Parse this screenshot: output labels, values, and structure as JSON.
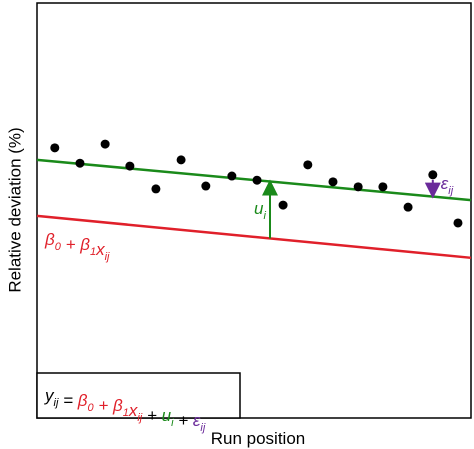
{
  "chart_data": {
    "type": "scatter",
    "x_label": "Run position",
    "y_label": "Relative deviation (%)",
    "xlim": [
      0,
      100
    ],
    "ylim": [
      0,
      100
    ],
    "x": [
      4.1,
      9.9,
      15.7,
      21.4,
      27.4,
      33.2,
      38.9,
      44.9,
      50.7,
      56.7,
      62.4,
      68.2,
      74.0,
      79.7,
      85.5,
      91.2,
      97.0
    ],
    "values": [
      65.1,
      61.4,
      66.0,
      60.7,
      55.2,
      62.2,
      55.9,
      58.3,
      57.3,
      51.3,
      61.0,
      56.9,
      55.7,
      55.7,
      50.8,
      58.6,
      47.0
    ],
    "color": "#000000",
    "fixed_line": {
      "color": "#e0202a",
      "y_start": 48.7,
      "y_end": 38.6
    },
    "group_line": {
      "color": "#1a8a1a",
      "y_start": 62.2,
      "y_end": 52.5
    },
    "fixed_label": [
      {
        "text": "β",
        "sub": "0"
      },
      {
        "text": " + "
      },
      {
        "text": "β",
        "sub": "1"
      },
      {
        "text": "x",
        "sub": "ij"
      }
    ],
    "group_label": [
      {
        "text": "u",
        "sub": "i"
      }
    ],
    "residual_label": {
      "color": "#6a2a9a",
      "pieces": [
        {
          "text": "ε",
          "sub": "ij"
        }
      ]
    },
    "equation": [
      {
        "text": "y",
        "sub": "ij",
        "color": "#000000"
      },
      {
        "text": " = ",
        "color": "#000000"
      },
      {
        "text": "β",
        "sub": "0",
        "color": "#e0202a"
      },
      {
        "text": " + ",
        "color": "#e0202a"
      },
      {
        "text": "β",
        "sub": "1",
        "color": "#e0202a"
      },
      {
        "text": "x",
        "sub": "ij",
        "color": "#e0202a"
      },
      {
        "text": " + ",
        "color": "#000000"
      },
      {
        "text": "u",
        "sub": "i",
        "color": "#1a8a1a"
      },
      {
        "text": " + ",
        "color": "#000000"
      },
      {
        "text": "ε",
        "sub": "ij",
        "color": "#6a2a9a"
      }
    ]
  }
}
